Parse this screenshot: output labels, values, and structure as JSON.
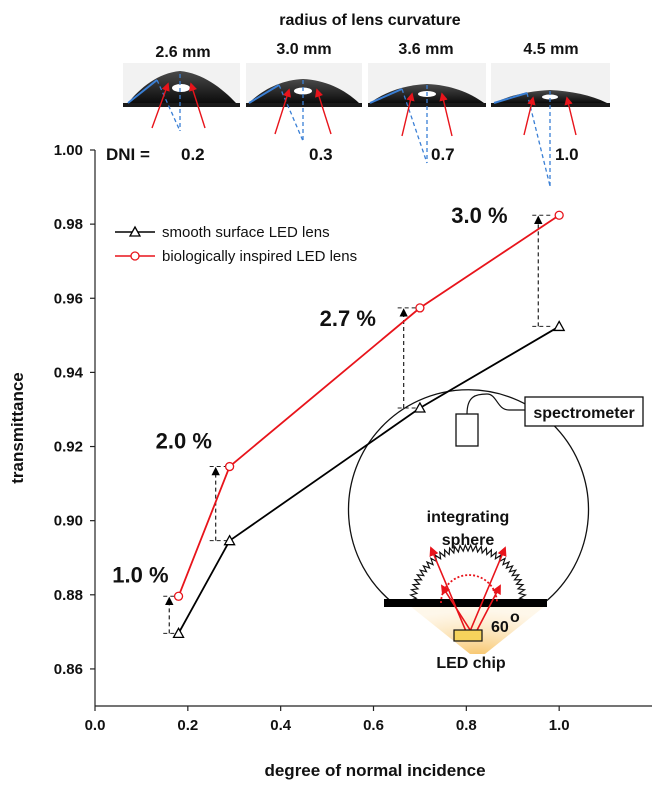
{
  "chart_data": {
    "type": "line",
    "xlabel": "degree of normal incidence",
    "ylabel": "transmittance",
    "xlim": [
      0.0,
      1.2
    ],
    "ylim": [
      0.85,
      1.0
    ],
    "x_ticks": [
      "0.0",
      "0.2",
      "0.4",
      "0.6",
      "0.8",
      "1.0"
    ],
    "y_ticks": [
      "0.86",
      "0.88",
      "0.90",
      "0.92",
      "0.94",
      "0.96",
      "0.98",
      "1.00"
    ],
    "grid": false,
    "legend_position": "top-left",
    "series": [
      {
        "name": "smooth surface LED lens",
        "color": "#000000",
        "marker": "triangle",
        "x": [
          0.18,
          0.29,
          0.7,
          1.0
        ],
        "y": [
          0.8696,
          0.8946,
          0.9304,
          0.9524
        ]
      },
      {
        "name": "biologically inspired LED lens",
        "color": "#e8141b",
        "marker": "circle",
        "x": [
          0.18,
          0.29,
          0.7,
          1.0
        ],
        "y": [
          0.8796,
          0.9146,
          0.9574,
          0.9824
        ]
      }
    ],
    "annotations": [
      {
        "text": "1.0 %",
        "x": 0.16,
        "y_low": 0.8696,
        "y_high": 0.8796
      },
      {
        "text": "2.0 %",
        "x": 0.26,
        "y_low": 0.8946,
        "y_high": 0.9146
      },
      {
        "text": "2.7 %",
        "x": 0.665,
        "y_low": 0.9304,
        "y_high": 0.9574
      },
      {
        "text": "3.0 %",
        "x": 0.955,
        "y_low": 0.9524,
        "y_high": 0.9824
      }
    ]
  },
  "header": {
    "title": "radius of lens curvature",
    "radii": [
      "2.6 mm",
      "3.0 mm",
      "3.6 mm",
      "4.5 mm"
    ],
    "dni_prefix": "DNI =",
    "dni_values": [
      "0.2",
      "0.3",
      "0.7",
      "1.0"
    ]
  },
  "inset": {
    "spectrometer": "spectrometer",
    "sphere_line1": "integrating",
    "sphere_line2": "sphere",
    "angle": "60",
    "degree_mark": "o",
    "chip": "LED chip"
  }
}
